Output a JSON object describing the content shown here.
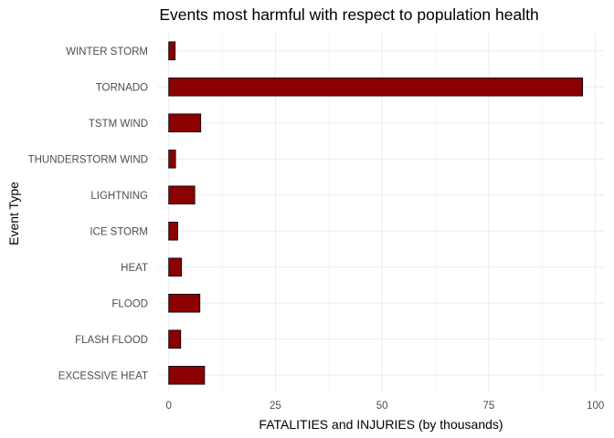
{
  "chart_data": {
    "type": "bar",
    "orientation": "horizontal",
    "title": "Events most harmful with respect to population health",
    "xlabel": "FATALITIES and INJURIES (by thousands)",
    "ylabel": "Event Type",
    "categories": [
      "EXCESSIVE HEAT",
      "FLASH FLOOD",
      "FLOOD",
      "HEAT",
      "ICE STORM",
      "LIGHTNING",
      "THUNDERSTORM WIND",
      "TSTM WIND",
      "TORNADO",
      "WINTER STORM"
    ],
    "values": [
      8.4,
      2.8,
      7.3,
      3.0,
      2.1,
      6.1,
      1.6,
      7.5,
      97.0,
      1.5
    ],
    "xlim": [
      -2.5,
      102
    ],
    "xticks": [
      0,
      25,
      50,
      75,
      100
    ],
    "xtick_labels": [
      "0",
      "25",
      "50",
      "75",
      "100"
    ],
    "grid": true,
    "bar_color": "#8b0000",
    "bar_outline": "#000000"
  }
}
